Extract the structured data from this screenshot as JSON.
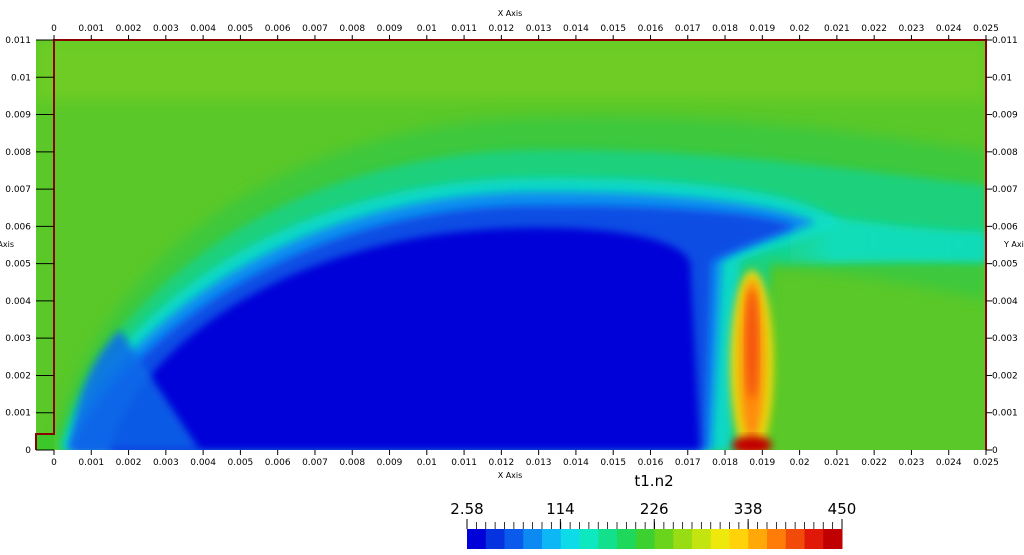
{
  "chart_data": {
    "type": "heatmap",
    "field_name": "t1.n2",
    "x_axis": {
      "title": "X Axis",
      "range": [
        0,
        0.025
      ],
      "ticks": [
        "0",
        "0.001",
        "0.002",
        "0.003",
        "0.004",
        "0.005",
        "0.006",
        "0.007",
        "0.008",
        "0.009",
        "0.01",
        "0.011",
        "0.012",
        "0.013",
        "0.014",
        "0.015",
        "0.016",
        "0.017",
        "0.018",
        "0.019",
        "0.02",
        "0.021",
        "0.022",
        "0.023",
        "0.024",
        "0.025"
      ]
    },
    "y_axis": {
      "title": "Y Axis",
      "range": [
        0,
        0.011
      ],
      "ticks": [
        "0",
        "0.001",
        "0.002",
        "0.003",
        "0.004",
        "0.005",
        "0.006",
        "0.007",
        "0.008",
        "0.009",
        "0.01",
        "0.011"
      ]
    },
    "colorbar": {
      "min": 2.58,
      "max": 450,
      "tick_labels": [
        "2.58",
        "114",
        "226",
        "338",
        "450"
      ],
      "colors": [
        "#0000d8",
        "#0533e0",
        "#0a5aeb",
        "#0c8af2",
        "#0db6f5",
        "#0ddce8",
        "#0ee8c0",
        "#12e08c",
        "#1ed85c",
        "#3cd030",
        "#6ad41c",
        "#98dc14",
        "#c4e410",
        "#eee80c",
        "#ffd20a",
        "#ffa808",
        "#ff7c08",
        "#f24a08",
        "#e01808",
        "#c00000"
      ]
    },
    "features": {
      "low_region": "blue dome roughly x 0.001–0.018, y 0–0.006",
      "high_region": "hot streak near x 0.0187, y 0–0.0045"
    }
  }
}
